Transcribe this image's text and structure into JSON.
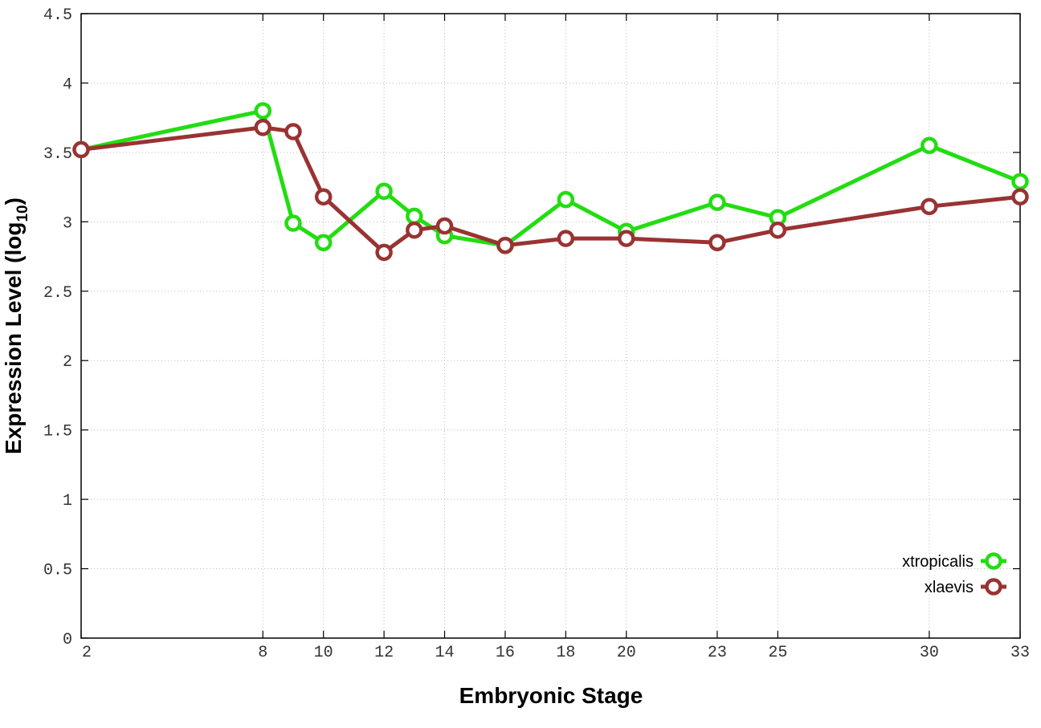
{
  "chart_data": {
    "type": "line",
    "xlabel": "Embryonic Stage",
    "ylabel": "Expression Level (log",
    "ylabel_sub": "10",
    "ylabel_close": ")",
    "xlim": [
      2,
      33
    ],
    "ylim": [
      0,
      4.5
    ],
    "x_ticks": [
      2,
      8,
      10,
      12,
      14,
      16,
      18,
      20,
      23,
      25,
      30,
      33
    ],
    "x_tick_labels": [
      "2",
      "8",
      "10",
      "12",
      "14",
      "16",
      "18",
      "20",
      "23",
      "25",
      "30",
      "33"
    ],
    "y_ticks": [
      0,
      0.5,
      1,
      1.5,
      2,
      2.5,
      3,
      3.5,
      4,
      4.5
    ],
    "y_tick_labels": [
      "0",
      "0.5",
      "1",
      "1.5",
      "2",
      "2.5",
      "3",
      "3.5",
      "4",
      "4.5"
    ],
    "grid": true,
    "legend_position": "bottom-right",
    "x": [
      2,
      8,
      9,
      10,
      12,
      13,
      14,
      16,
      18,
      20,
      23,
      25,
      30,
      33
    ],
    "series": [
      {
        "name": "xtropicalis",
        "color": "#22dd11",
        "values": [
          3.52,
          3.8,
          2.99,
          2.85,
          3.22,
          3.04,
          2.9,
          2.83,
          3.16,
          2.93,
          3.14,
          3.03,
          3.55,
          3.29
        ]
      },
      {
        "name": "xlaevis",
        "color": "#993333",
        "values": [
          3.52,
          3.68,
          3.65,
          3.18,
          2.78,
          2.94,
          2.97,
          2.83,
          2.88,
          2.88,
          2.85,
          2.94,
          3.11,
          3.18
        ]
      }
    ]
  }
}
